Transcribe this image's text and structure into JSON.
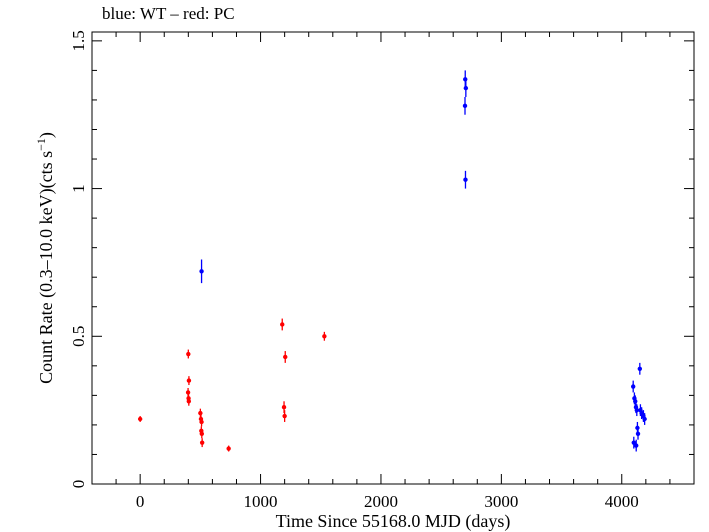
{
  "chart_data": {
    "type": "scatter",
    "title": "blue: WT – red: PC",
    "xlabel": "Time Since 55168.0 MJD (days)",
    "ylabel_main": "Count Rate (0.3–10.0 keV)(cts s",
    "ylabel_sup": "−1",
    "ylabel_close": ")",
    "xlim": [
      -400,
      4600
    ],
    "ylim": [
      0,
      1.53
    ],
    "xticks": [
      0,
      1000,
      2000,
      3000,
      4000
    ],
    "xtick_labels": [
      "0",
      "1000",
      "2000",
      "3000",
      "4000"
    ],
    "yticks": [
      0,
      0.5,
      1,
      1.5
    ],
    "ytick_labels": [
      "0",
      "0.5",
      "1",
      "1.5"
    ],
    "grid": false,
    "series": [
      {
        "name": "WT",
        "color": "#0000ff",
        "points": [
          {
            "x": 510,
            "y": 0.72,
            "err": 0.04
          },
          {
            "x": 2700,
            "y": 1.37,
            "err": 0.03
          },
          {
            "x": 2705,
            "y": 1.34,
            "err": 0.03
          },
          {
            "x": 2698,
            "y": 1.28,
            "err": 0.03
          },
          {
            "x": 2702,
            "y": 1.03,
            "err": 0.03
          },
          {
            "x": 4095,
            "y": 0.33,
            "err": 0.02
          },
          {
            "x": 4105,
            "y": 0.29,
            "err": 0.02
          },
          {
            "x": 4112,
            "y": 0.28,
            "err": 0.02
          },
          {
            "x": 4118,
            "y": 0.26,
            "err": 0.02
          },
          {
            "x": 4125,
            "y": 0.25,
            "err": 0.02
          },
          {
            "x": 4150,
            "y": 0.39,
            "err": 0.02
          },
          {
            "x": 4155,
            "y": 0.25,
            "err": 0.02
          },
          {
            "x": 4165,
            "y": 0.24,
            "err": 0.02
          },
          {
            "x": 4180,
            "y": 0.23,
            "err": 0.02
          },
          {
            "x": 4190,
            "y": 0.22,
            "err": 0.02
          },
          {
            "x": 4130,
            "y": 0.19,
            "err": 0.02
          },
          {
            "x": 4135,
            "y": 0.17,
            "err": 0.02
          },
          {
            "x": 4100,
            "y": 0.14,
            "err": 0.02
          },
          {
            "x": 4120,
            "y": 0.13,
            "err": 0.02
          }
        ]
      },
      {
        "name": "PC",
        "color": "#ff0000",
        "points": [
          {
            "x": 0,
            "y": 0.22,
            "err": 0.01
          },
          {
            "x": 400,
            "y": 0.44,
            "err": 0.015
          },
          {
            "x": 405,
            "y": 0.35,
            "err": 0.015
          },
          {
            "x": 398,
            "y": 0.31,
            "err": 0.015
          },
          {
            "x": 402,
            "y": 0.29,
            "err": 0.015
          },
          {
            "x": 404,
            "y": 0.28,
            "err": 0.015
          },
          {
            "x": 500,
            "y": 0.24,
            "err": 0.015
          },
          {
            "x": 505,
            "y": 0.22,
            "err": 0.015
          },
          {
            "x": 510,
            "y": 0.21,
            "err": 0.015
          },
          {
            "x": 508,
            "y": 0.18,
            "err": 0.015
          },
          {
            "x": 512,
            "y": 0.17,
            "err": 0.015
          },
          {
            "x": 515,
            "y": 0.14,
            "err": 0.015
          },
          {
            "x": 735,
            "y": 0.12,
            "err": 0.01
          },
          {
            "x": 1180,
            "y": 0.54,
            "err": 0.02
          },
          {
            "x": 1205,
            "y": 0.43,
            "err": 0.02
          },
          {
            "x": 1195,
            "y": 0.26,
            "err": 0.02
          },
          {
            "x": 1200,
            "y": 0.23,
            "err": 0.02
          },
          {
            "x": 1530,
            "y": 0.5,
            "err": 0.015
          }
        ]
      }
    ]
  }
}
